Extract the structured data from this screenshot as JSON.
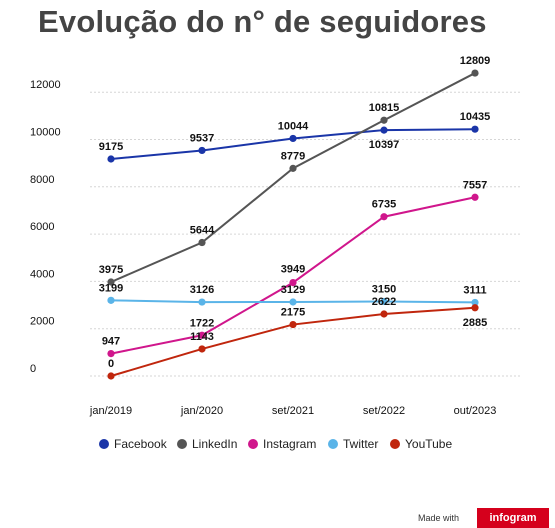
{
  "chart_data": {
    "type": "line",
    "title": "Evolução do n° de seguidores",
    "categories": [
      "jan/2019",
      "jan/2020",
      "set/2021",
      "set/2022",
      "out/2023"
    ],
    "ylim": [
      0,
      14000
    ],
    "yticks": [
      0,
      2000,
      4000,
      6000,
      8000,
      10000,
      12000
    ],
    "legend_position": "bottom",
    "grid": "horizontal",
    "series": [
      {
        "name": "Facebook",
        "color": "#1a35a8",
        "values": [
          9175,
          9537,
          10044,
          10397,
          10435
        ]
      },
      {
        "name": "LinkedIn",
        "color": "#555555",
        "values": [
          3975,
          5644,
          8779,
          10815,
          12809
        ]
      },
      {
        "name": "Instagram",
        "color": "#d0168c",
        "values": [
          947,
          1722,
          3949,
          6735,
          7557
        ]
      },
      {
        "name": "Twitter",
        "color": "#5ab4e8",
        "values": [
          3199,
          3126,
          3129,
          3150,
          3111
        ]
      },
      {
        "name": "YouTube",
        "color": "#c0260d",
        "values": [
          0,
          1143,
          2175,
          2622,
          2885
        ]
      }
    ]
  },
  "footer": {
    "made_with": "Made with",
    "brand": "infogram"
  }
}
